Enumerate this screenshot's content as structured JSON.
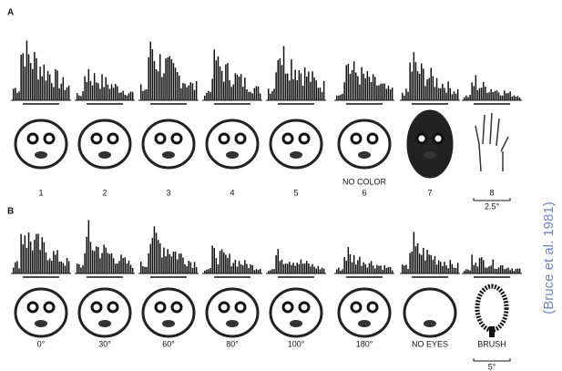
{
  "panels": [
    {
      "label": "A",
      "items": [
        {
          "label": "1"
        },
        {
          "label": "2"
        },
        {
          "label": "3"
        },
        {
          "label": "4"
        },
        {
          "label": "5"
        },
        {
          "label": "6",
          "note": "NO COLOR"
        },
        {
          "label": "7"
        },
        {
          "label": "8"
        }
      ],
      "scale": "2.5°"
    },
    {
      "label": "B",
      "items": [
        {
          "label": "0°"
        },
        {
          "label": "30°"
        },
        {
          "label": "60°"
        },
        {
          "label": "80°"
        },
        {
          "label": "100°"
        },
        {
          "label": "180°"
        },
        {
          "label": "NO EYES"
        },
        {
          "label": "BRUSH"
        }
      ],
      "scale": "5°"
    }
  ],
  "citation": "(Bruce et al. 1981)"
}
